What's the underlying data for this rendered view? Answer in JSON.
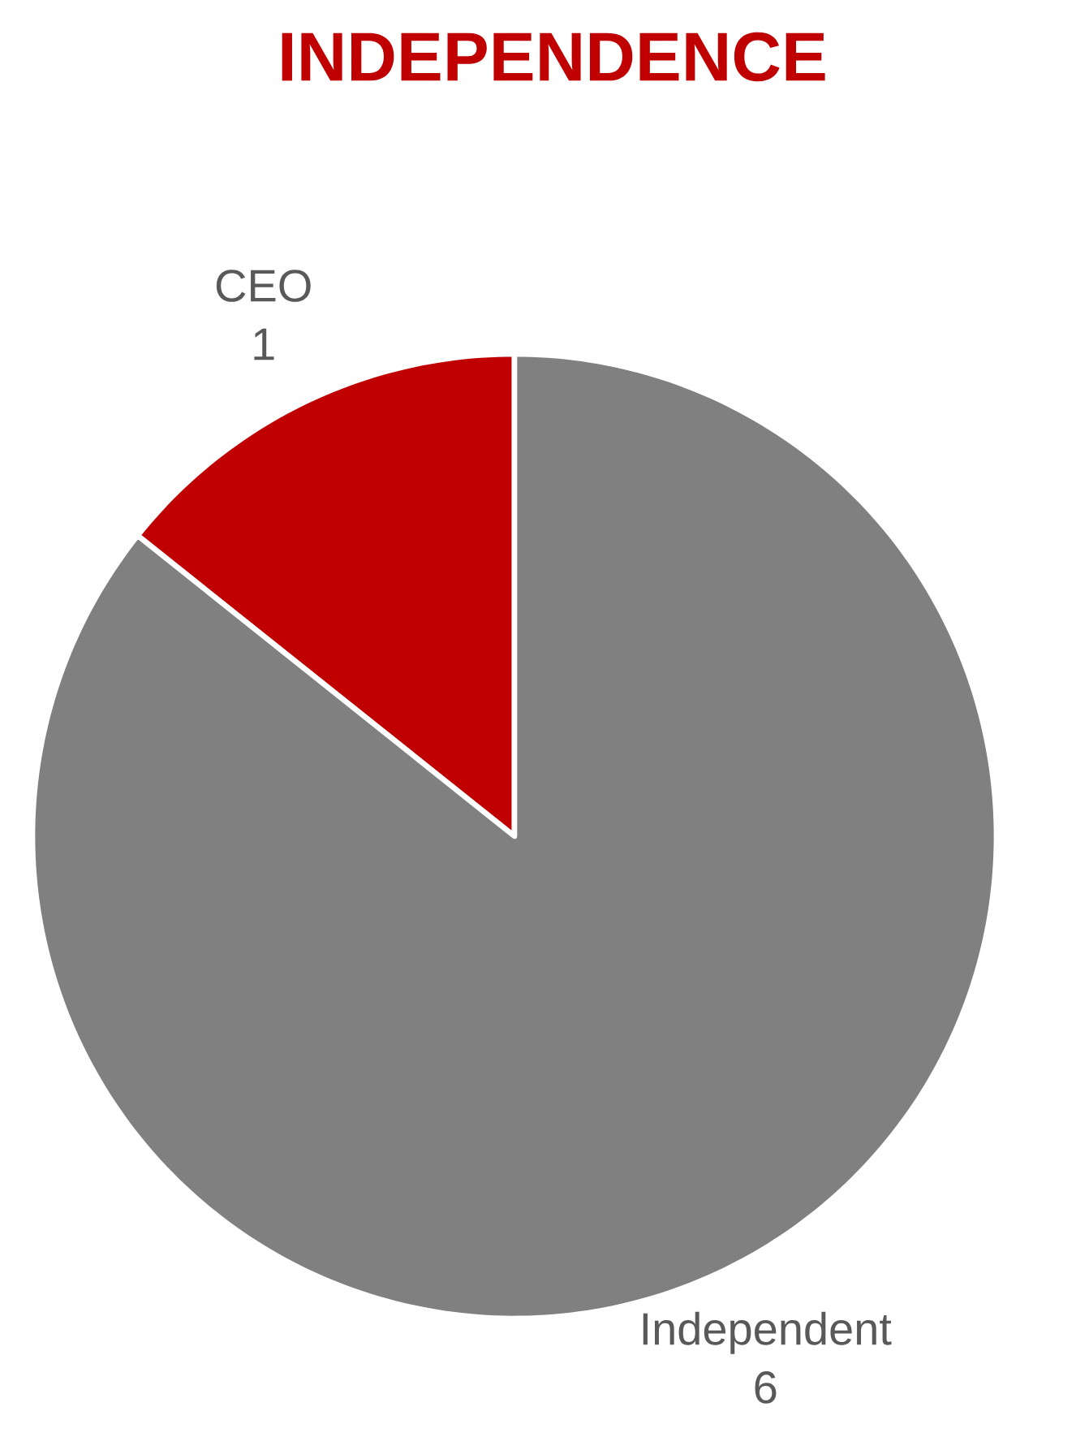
{
  "chart_data": {
    "type": "pie",
    "title": "INDEPENDENCE",
    "categories": [
      "CEO",
      "Independent"
    ],
    "values": [
      1,
      6
    ],
    "colors": [
      "#c00000",
      "#808080"
    ],
    "data_labels": true
  }
}
